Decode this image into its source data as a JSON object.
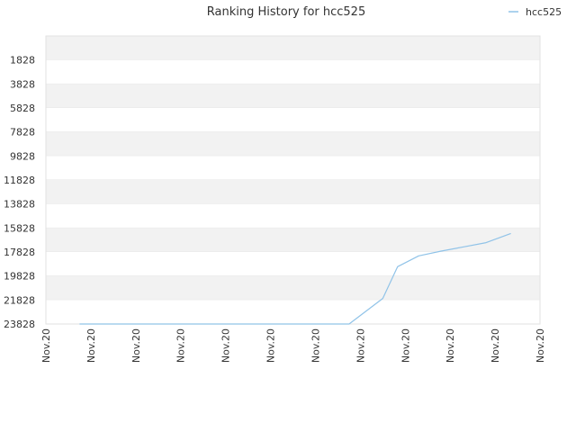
{
  "chart_data": {
    "type": "line",
    "title": "Ranking History for hcc525",
    "xlabel": "",
    "ylabel": "",
    "y_inverted": true,
    "ylim": [
      23828,
      -172
    ],
    "y_ticks": [
      1828,
      3828,
      5828,
      7828,
      9828,
      11828,
      13828,
      15828,
      17828,
      19828,
      21828,
      23828
    ],
    "x_tick_labels": [
      "Nov.20",
      "Nov.20",
      "Nov.20",
      "Nov.20",
      "Nov.20",
      "Nov.20",
      "Nov.20",
      "Nov.20",
      "Nov.20",
      "Nov.20",
      "Nov.20",
      "Nov.20"
    ],
    "grid": true,
    "legend_position": "top-right",
    "series": [
      {
        "name": "hcc525",
        "color": "#90c3e8",
        "x": [
          0.75,
          1.5,
          2.5,
          3.5,
          4.5,
          5.5,
          6.5,
          6.75,
          7.5,
          7.83,
          8.3,
          8.8,
          9.3,
          9.8,
          10.35
        ],
        "values": [
          23828,
          23828,
          23828,
          23828,
          23828,
          23828,
          23828,
          23828,
          21700,
          19050,
          18150,
          17750,
          17400,
          17050,
          16280
        ]
      }
    ]
  }
}
